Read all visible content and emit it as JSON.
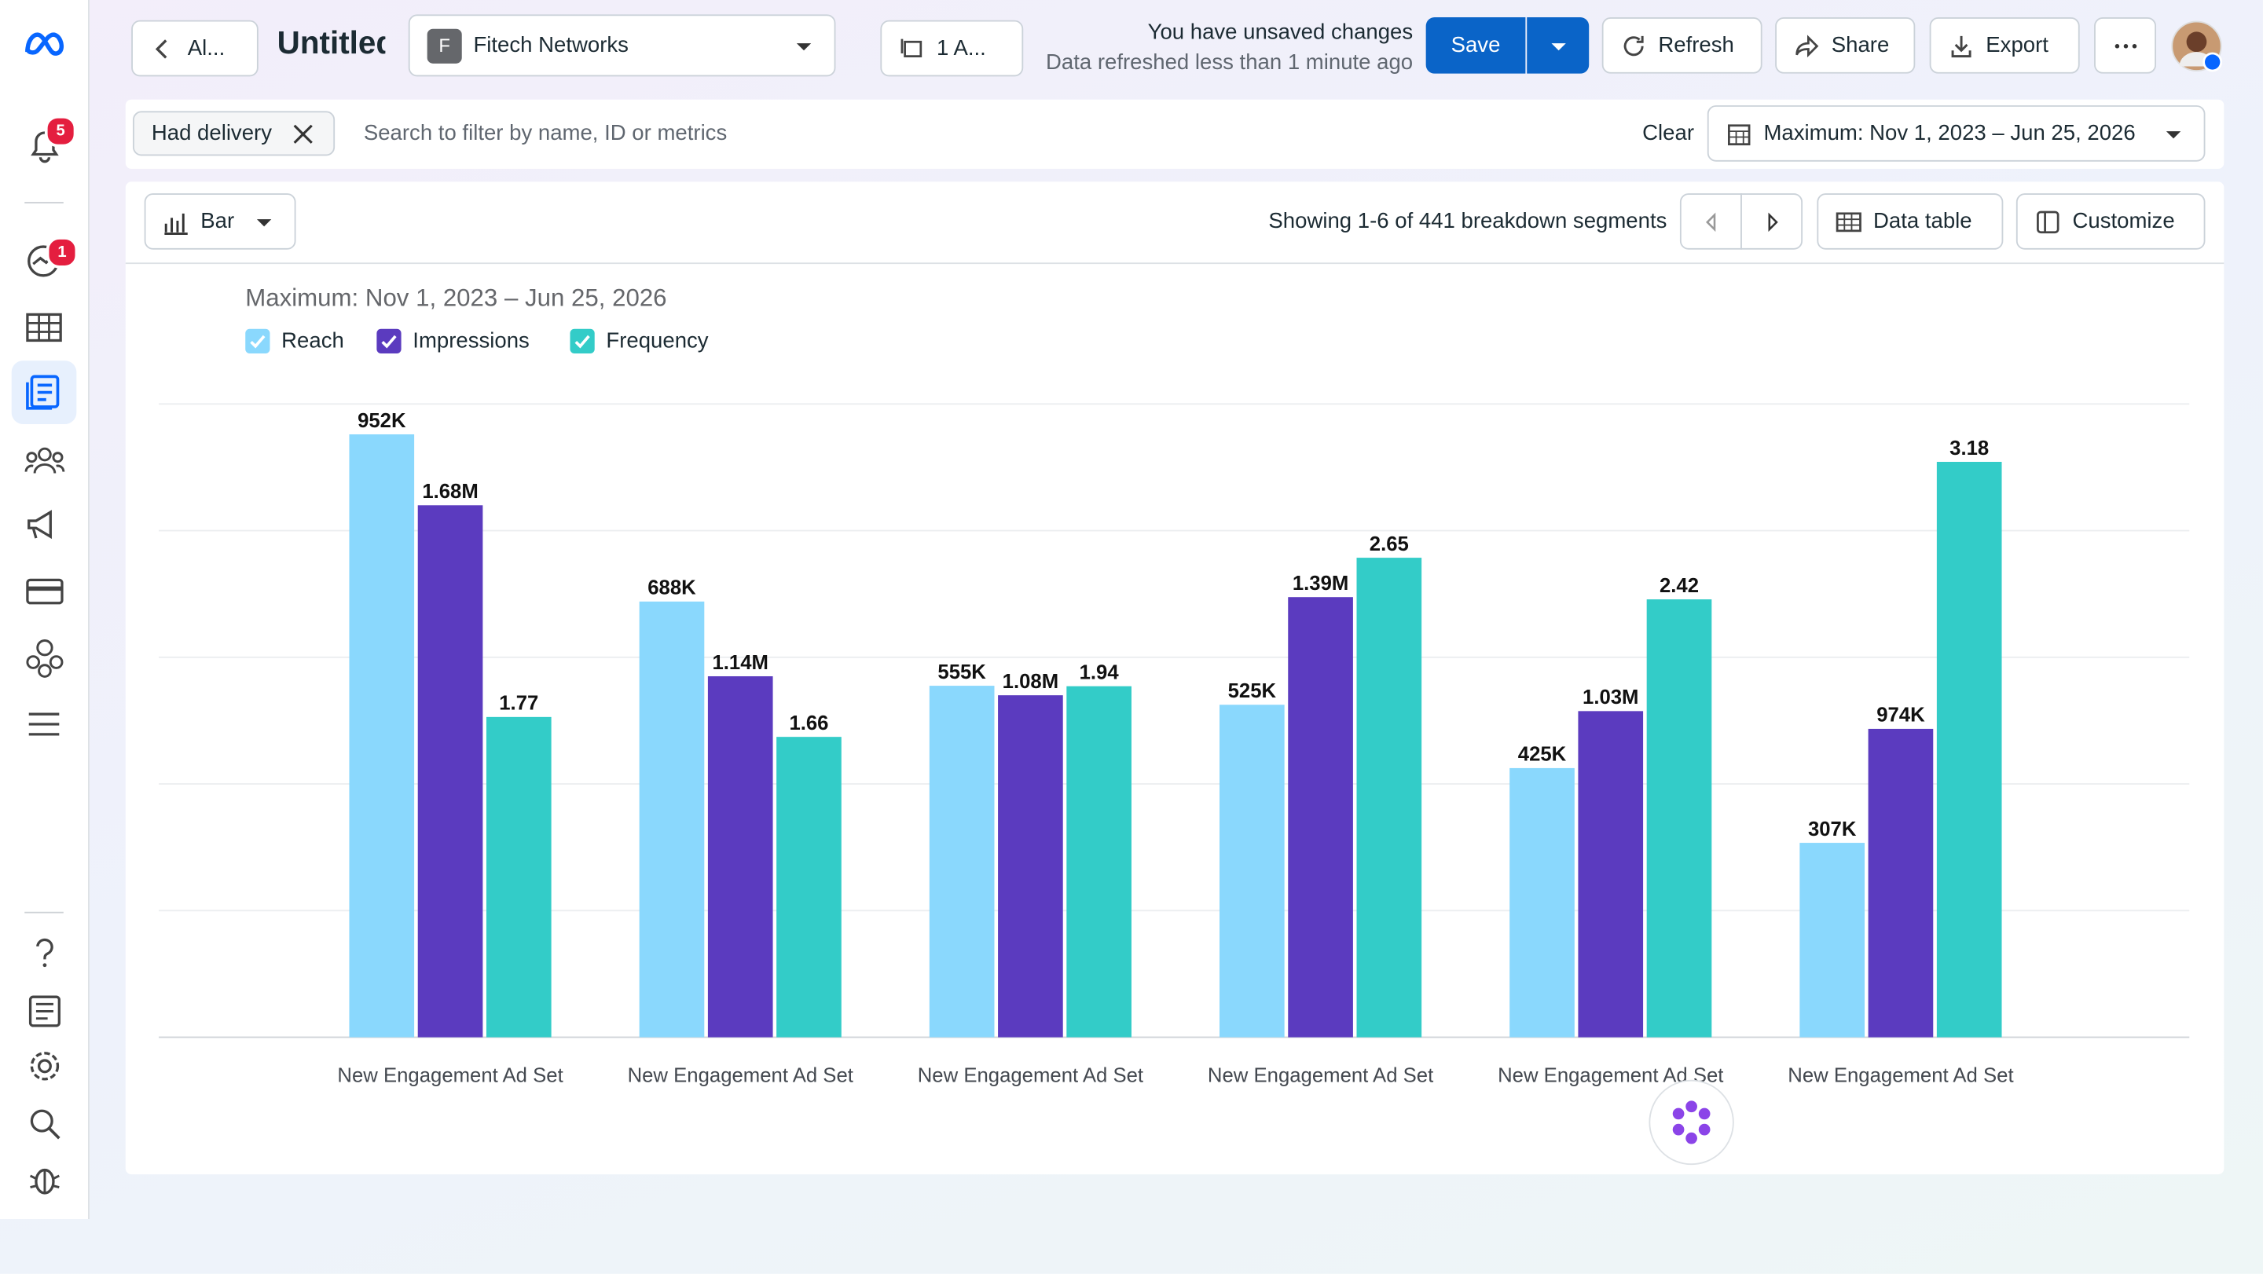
{
  "topbar": {
    "back": "Al...",
    "title": "Untitled",
    "account_badge": "F",
    "account": "Fitech Networks",
    "selection": "1 A...",
    "status": "You have unsaved changes",
    "refreshed": "Data refreshed less than 1 minute ago",
    "save": "Save",
    "refresh": "Refresh",
    "share": "Share",
    "export": "Export"
  },
  "sidebar": {
    "notifications_badge": "5",
    "alerts_badge": "1"
  },
  "filter_bar": {
    "chip": "Had delivery",
    "search_placeholder": "Search to filter by name, ID or metrics",
    "clear": "Clear",
    "date_range": "Maximum: Nov 1, 2023 – Jun 25, 2026"
  },
  "toolbar": {
    "chart_type": "Bar",
    "pagination": "Showing 1-6 of 441 breakdown segments",
    "data_table": "Data table",
    "customize": "Customize"
  },
  "chart_data": {
    "type": "bar",
    "subtitle": "Maximum: Nov 1, 2023 – Jun 25, 2026",
    "categories": [
      "New Engagement Ad Set",
      "New Engagement Ad Set",
      "New Engagement Ad Set",
      "New Engagement Ad Set",
      "New Engagement Ad Set",
      "New Engagement Ad Set"
    ],
    "ylim": [
      0,
      1000000
    ],
    "yticks": [
      0,
      200000,
      400000,
      600000,
      800000,
      1000000
    ],
    "grid": true,
    "series": [
      {
        "name": "Reach",
        "color": "#8ad8fd",
        "values": [
          952000,
          688000,
          555000,
          525000,
          425000,
          307000
        ],
        "value_labels": [
          "952K",
          "688K",
          "555K",
          "525K",
          "425K",
          "307K"
        ]
      },
      {
        "name": "Impressions",
        "color": "#5b3bbf",
        "ylim": [
          0,
          2000000
        ],
        "values": [
          1680000,
          1140000,
          1080000,
          1390000,
          1030000,
          974000
        ],
        "value_labels": [
          "1.68M",
          "1.14M",
          "1.08M",
          "1.39M",
          "1.03M",
          "974K"
        ]
      },
      {
        "name": "Frequency",
        "color": "#33ccc8",
        "ylim": [
          0,
          3.5
        ],
        "values": [
          1.77,
          1.66,
          1.94,
          2.65,
          2.42,
          3.18
        ]
      }
    ]
  }
}
